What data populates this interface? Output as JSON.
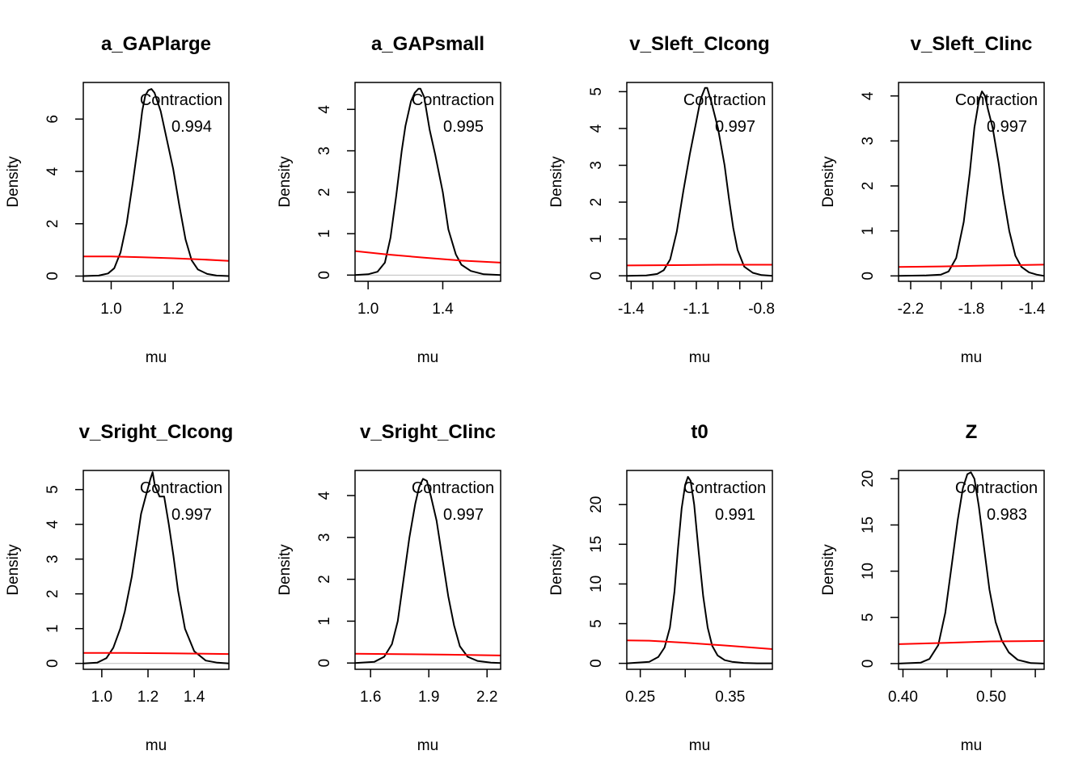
{
  "chart_data": [
    {
      "type": "line",
      "title": "a_GAPlarge",
      "xlabel": "mu",
      "ylabel": "Density",
      "xlim": [
        0.91,
        1.38
      ],
      "ylim": [
        -0.2,
        7.4
      ],
      "xticks": [
        {
          "v": 1.0,
          "label": "1.0"
        },
        {
          "v": 1.2,
          "label": "1.2"
        }
      ],
      "yticks": [
        {
          "v": 0,
          "label": "0"
        },
        {
          "v": 2,
          "label": "2"
        },
        {
          "v": 4,
          "label": "4"
        },
        {
          "v": 6,
          "label": "6"
        }
      ],
      "annotation": {
        "label": "Contraction",
        "value": "0.994"
      },
      "series": [
        {
          "color": "#000000",
          "x": [
            0.91,
            0.96,
            0.99,
            1.01,
            1.03,
            1.05,
            1.07,
            1.09,
            1.1,
            1.11,
            1.12,
            1.13,
            1.14,
            1.16,
            1.18,
            1.2,
            1.22,
            1.24,
            1.26,
            1.28,
            1.31,
            1.34,
            1.38
          ],
          "y": [
            0,
            0.02,
            0.1,
            0.3,
            0.9,
            2.0,
            3.6,
            5.3,
            6.3,
            6.9,
            7.1,
            7.15,
            7.0,
            6.3,
            5.2,
            4.1,
            2.7,
            1.4,
            0.6,
            0.25,
            0.08,
            0.02,
            0
          ]
        },
        {
          "color": "#ff0000",
          "x": [
            0.91,
            1.0,
            1.1,
            1.2,
            1.3,
            1.38
          ],
          "y": [
            0.75,
            0.75,
            0.72,
            0.68,
            0.63,
            0.58
          ]
        }
      ]
    },
    {
      "type": "line",
      "title": "a_GAPsmall",
      "xlabel": "mu",
      "ylabel": "Density",
      "xlim": [
        0.93,
        1.71
      ],
      "ylim": [
        -0.15,
        4.65
      ],
      "xticks": [
        {
          "v": 1.0,
          "label": "1.0"
        },
        {
          "v": 1.4,
          "label": "1.4"
        }
      ],
      "yticks": [
        {
          "v": 0,
          "label": "0"
        },
        {
          "v": 1,
          "label": "1"
        },
        {
          "v": 2,
          "label": "2"
        },
        {
          "v": 3,
          "label": "3"
        },
        {
          "v": 4,
          "label": "4"
        }
      ],
      "annotation": {
        "label": "Contraction",
        "value": "0.995"
      },
      "series": [
        {
          "color": "#000000",
          "x": [
            0.93,
            1.0,
            1.05,
            1.09,
            1.12,
            1.15,
            1.18,
            1.2,
            1.23,
            1.25,
            1.27,
            1.28,
            1.3,
            1.33,
            1.36,
            1.4,
            1.43,
            1.47,
            1.5,
            1.55,
            1.62,
            1.71
          ],
          "y": [
            0,
            0.02,
            0.08,
            0.3,
            0.9,
            1.9,
            3.0,
            3.6,
            4.2,
            4.4,
            4.5,
            4.5,
            4.3,
            3.5,
            2.9,
            2.0,
            1.1,
            0.5,
            0.25,
            0.1,
            0.02,
            0
          ]
        },
        {
          "color": "#ff0000",
          "x": [
            0.93,
            1.1,
            1.3,
            1.5,
            1.71
          ],
          "y": [
            0.58,
            0.5,
            0.42,
            0.35,
            0.3
          ]
        }
      ]
    },
    {
      "type": "line",
      "title": "v_Sleft_CIcong",
      "xlabel": "mu",
      "ylabel": "Density",
      "xlim": [
        -1.42,
        -0.75
      ],
      "ylim": [
        -0.15,
        5.25
      ],
      "xticks": [
        {
          "v": -1.4,
          "label": "-1.4"
        },
        {
          "v": -1.3,
          "label": ""
        },
        {
          "v": -1.2,
          "label": ""
        },
        {
          "v": -1.1,
          "label": "-1.1"
        },
        {
          "v": -1.0,
          "label": ""
        },
        {
          "v": -0.9,
          "label": ""
        },
        {
          "v": -0.8,
          "label": "-0.8"
        }
      ],
      "yticks": [
        {
          "v": 0,
          "label": "0"
        },
        {
          "v": 1,
          "label": "1"
        },
        {
          "v": 2,
          "label": "2"
        },
        {
          "v": 3,
          "label": "3"
        },
        {
          "v": 4,
          "label": "4"
        },
        {
          "v": 5,
          "label": "5"
        }
      ],
      "annotation": {
        "label": "Contraction",
        "value": "0.997"
      },
      "series": [
        {
          "color": "#000000",
          "x": [
            -1.42,
            -1.33,
            -1.28,
            -1.25,
            -1.22,
            -1.19,
            -1.16,
            -1.13,
            -1.1,
            -1.08,
            -1.06,
            -1.05,
            -1.03,
            -1.0,
            -0.97,
            -0.95,
            -0.93,
            -0.91,
            -0.88,
            -0.84,
            -0.8,
            -0.75
          ],
          "y": [
            0,
            0.01,
            0.05,
            0.15,
            0.45,
            1.2,
            2.3,
            3.3,
            4.2,
            4.8,
            5.1,
            5.1,
            4.7,
            4.0,
            3.0,
            2.1,
            1.3,
            0.7,
            0.25,
            0.08,
            0.02,
            0
          ]
        },
        {
          "color": "#ff0000",
          "x": [
            -1.42,
            -1.2,
            -1.0,
            -0.75
          ],
          "y": [
            0.28,
            0.29,
            0.3,
            0.3
          ]
        }
      ]
    },
    {
      "type": "line",
      "title": "v_Sleft_CIinc",
      "xlabel": "mu",
      "ylabel": "Density",
      "xlim": [
        -2.28,
        -1.32
      ],
      "ylim": [
        -0.12,
        4.3
      ],
      "xticks": [
        {
          "v": -2.2,
          "label": "-2.2"
        },
        {
          "v": -2.0,
          "label": ""
        },
        {
          "v": -1.8,
          "label": "-1.8"
        },
        {
          "v": -1.6,
          "label": ""
        },
        {
          "v": -1.4,
          "label": "-1.4"
        }
      ],
      "yticks": [
        {
          "v": 0,
          "label": "0"
        },
        {
          "v": 1,
          "label": "1"
        },
        {
          "v": 2,
          "label": "2"
        },
        {
          "v": 3,
          "label": "3"
        },
        {
          "v": 4,
          "label": "4"
        }
      ],
      "annotation": {
        "label": "Contraction",
        "value": "0.997"
      },
      "series": [
        {
          "color": "#000000",
          "x": [
            -2.28,
            -2.1,
            -2.0,
            -1.95,
            -1.9,
            -1.85,
            -1.81,
            -1.78,
            -1.75,
            -1.73,
            -1.71,
            -1.69,
            -1.66,
            -1.62,
            -1.59,
            -1.55,
            -1.51,
            -1.47,
            -1.42,
            -1.37,
            -1.32
          ],
          "y": [
            0,
            0.01,
            0.03,
            0.1,
            0.4,
            1.2,
            2.3,
            3.3,
            3.9,
            4.1,
            4.0,
            3.7,
            3.3,
            2.5,
            1.8,
            1.0,
            0.45,
            0.2,
            0.08,
            0.03,
            0
          ]
        },
        {
          "color": "#ff0000",
          "x": [
            -2.28,
            -2.0,
            -1.7,
            -1.32
          ],
          "y": [
            0.2,
            0.21,
            0.23,
            0.25
          ]
        }
      ]
    },
    {
      "type": "line",
      "title": "v_Sright_CIcong",
      "xlabel": "mu",
      "ylabel": "Density",
      "xlim": [
        0.92,
        1.55
      ],
      "ylim": [
        -0.17,
        5.55
      ],
      "xticks": [
        {
          "v": 1.0,
          "label": "1.0"
        },
        {
          "v": 1.2,
          "label": "1.2"
        },
        {
          "v": 1.4,
          "label": "1.4"
        }
      ],
      "yticks": [
        {
          "v": 0,
          "label": "0"
        },
        {
          "v": 1,
          "label": "1"
        },
        {
          "v": 2,
          "label": "2"
        },
        {
          "v": 3,
          "label": "3"
        },
        {
          "v": 4,
          "label": "4"
        },
        {
          "v": 5,
          "label": "5"
        }
      ],
      "annotation": {
        "label": "Contraction",
        "value": "0.997"
      },
      "series": [
        {
          "color": "#000000",
          "x": [
            0.92,
            0.98,
            1.02,
            1.05,
            1.08,
            1.1,
            1.13,
            1.15,
            1.17,
            1.19,
            1.21,
            1.22,
            1.23,
            1.25,
            1.27,
            1.29,
            1.31,
            1.33,
            1.36,
            1.4,
            1.45,
            1.5,
            1.55
          ],
          "y": [
            0,
            0.02,
            0.15,
            0.45,
            1.0,
            1.5,
            2.5,
            3.4,
            4.3,
            4.8,
            5.3,
            5.5,
            5.1,
            4.8,
            4.8,
            4.0,
            3.1,
            2.1,
            1.0,
            0.35,
            0.08,
            0.02,
            0
          ]
        },
        {
          "color": "#ff0000",
          "x": [
            0.92,
            1.1,
            1.3,
            1.55
          ],
          "y": [
            0.3,
            0.3,
            0.29,
            0.27
          ]
        }
      ]
    },
    {
      "type": "line",
      "title": "v_Sright_CIinc",
      "xlabel": "mu",
      "ylabel": "Density",
      "xlim": [
        1.52,
        2.27
      ],
      "ylim": [
        -0.15,
        4.6
      ],
      "xticks": [
        {
          "v": 1.6,
          "label": "1.6"
        },
        {
          "v": 1.9,
          "label": "1.9"
        },
        {
          "v": 2.2,
          "label": "2.2"
        }
      ],
      "yticks": [
        {
          "v": 0,
          "label": "0"
        },
        {
          "v": 1,
          "label": "1"
        },
        {
          "v": 2,
          "label": "2"
        },
        {
          "v": 3,
          "label": "3"
        },
        {
          "v": 4,
          "label": "4"
        }
      ],
      "annotation": {
        "label": "Contraction",
        "value": "0.997"
      },
      "series": [
        {
          "color": "#000000",
          "x": [
            1.52,
            1.62,
            1.67,
            1.71,
            1.74,
            1.77,
            1.8,
            1.83,
            1.85,
            1.87,
            1.89,
            1.91,
            1.94,
            1.97,
            2.0,
            2.03,
            2.06,
            2.1,
            2.15,
            2.22,
            2.27
          ],
          "y": [
            0,
            0.03,
            0.15,
            0.45,
            1.0,
            2.0,
            3.0,
            3.8,
            4.2,
            4.4,
            4.35,
            4.0,
            3.4,
            2.5,
            1.6,
            0.9,
            0.4,
            0.15,
            0.05,
            0.01,
            0
          ]
        },
        {
          "color": "#ff0000",
          "x": [
            1.52,
            1.8,
            2.0,
            2.27
          ],
          "y": [
            0.22,
            0.21,
            0.2,
            0.18
          ]
        }
      ]
    },
    {
      "type": "line",
      "title": "t0",
      "xlabel": "mu",
      "ylabel": "Density",
      "xlim": [
        0.235,
        0.397
      ],
      "ylim": [
        -0.75,
        24.3
      ],
      "xticks": [
        {
          "v": 0.25,
          "label": "0.25"
        },
        {
          "v": 0.3,
          "label": ""
        },
        {
          "v": 0.35,
          "label": "0.35"
        }
      ],
      "yticks": [
        {
          "v": 0,
          "label": "0"
        },
        {
          "v": 5,
          "label": "5"
        },
        {
          "v": 10,
          "label": "10"
        },
        {
          "v": 15,
          "label": "15"
        },
        {
          "v": 20,
          "label": "20"
        }
      ],
      "annotation": {
        "label": "Contraction",
        "value": "0.991"
      },
      "series": [
        {
          "color": "#000000",
          "x": [
            0.235,
            0.26,
            0.27,
            0.277,
            0.283,
            0.288,
            0.292,
            0.296,
            0.3,
            0.303,
            0.306,
            0.31,
            0.315,
            0.32,
            0.325,
            0.33,
            0.336,
            0.344,
            0.352,
            0.365,
            0.38,
            0.397
          ],
          "y": [
            0,
            0.2,
            0.8,
            2.0,
            4.5,
            9.0,
            14.5,
            19.5,
            22.5,
            23.5,
            23.0,
            20.0,
            14.0,
            8.5,
            4.5,
            2.2,
            1.0,
            0.4,
            0.2,
            0.05,
            0,
            0
          ]
        },
        {
          "color": "#ff0000",
          "x": [
            0.235,
            0.26,
            0.3,
            0.35,
            0.397
          ],
          "y": [
            2.9,
            2.85,
            2.6,
            2.2,
            1.8
          ]
        }
      ]
    },
    {
      "type": "line",
      "title": "Z",
      "xlabel": "mu",
      "ylabel": "Density",
      "xlim": [
        0.395,
        0.56
      ],
      "ylim": [
        -0.62,
        20.9
      ],
      "xticks": [
        {
          "v": 0.4,
          "label": "0.40"
        },
        {
          "v": 0.45,
          "label": ""
        },
        {
          "v": 0.5,
          "label": "0.50"
        },
        {
          "v": 0.55,
          "label": ""
        }
      ],
      "yticks": [
        {
          "v": 0,
          "label": "0"
        },
        {
          "v": 5,
          "label": "5"
        },
        {
          "v": 10,
          "label": "10"
        },
        {
          "v": 15,
          "label": "15"
        },
        {
          "v": 20,
          "label": "20"
        }
      ],
      "annotation": {
        "label": "Contraction",
        "value": "0.983"
      },
      "series": [
        {
          "color": "#000000",
          "x": [
            0.395,
            0.42,
            0.43,
            0.44,
            0.448,
            0.455,
            0.462,
            0.468,
            0.473,
            0.477,
            0.481,
            0.486,
            0.492,
            0.498,
            0.505,
            0.512,
            0.52,
            0.53,
            0.545,
            0.56
          ],
          "y": [
            0,
            0.1,
            0.5,
            2.0,
            5.5,
            10.5,
            15.5,
            19.0,
            20.5,
            20.7,
            20.0,
            17.0,
            12.5,
            8.0,
            4.5,
            2.5,
            1.2,
            0.4,
            0.05,
            0
          ]
        },
        {
          "color": "#ff0000",
          "x": [
            0.395,
            0.45,
            0.5,
            0.56
          ],
          "y": [
            2.1,
            2.25,
            2.4,
            2.45
          ]
        }
      ]
    }
  ]
}
